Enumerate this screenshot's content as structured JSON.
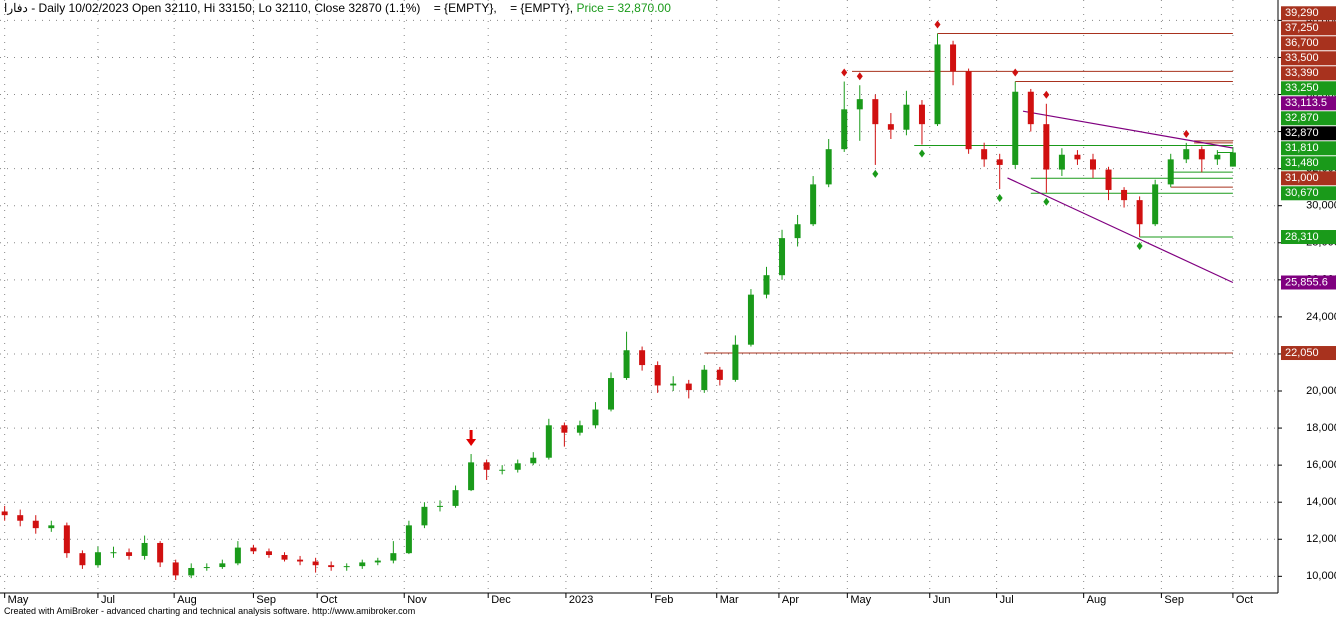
{
  "header": {
    "symbol": "دفارا",
    "title": "- Daily 10/02/2023 Open 32110, Hi 33150, Lo 32110, Close 32870 (1.1%)",
    "empty1": "= {EMPTY},",
    "empty2": "= {EMPTY},",
    "price": "Price = 32,870.00"
  },
  "footer": "Created with AmiBroker - advanced charting and technical analysis software. http://www.amibroker.com",
  "chart_data": {
    "type": "candlestick",
    "up_color": "#1a9a1a",
    "down_color": "#d01010",
    "open": [
      13500,
      13300,
      13000,
      12600,
      12750,
      11250,
      10600,
      11300,
      11300,
      11100,
      11800,
      10750,
      10050,
      10450,
      10500,
      10700,
      11550,
      11350,
      11150,
      10900,
      10800,
      10600,
      10500,
      10550,
      10750,
      10850,
      11250,
      12750,
      13750,
      13800,
      14650,
      16150,
      15750,
      15750,
      16100,
      16400,
      18150,
      17750,
      18150,
      19000,
      20700,
      22200,
      21400,
      20300,
      20400,
      20050,
      21150,
      20600,
      22500,
      25200,
      26250,
      28250,
      29000,
      31150,
      33050,
      35200,
      35750,
      34400,
      34100,
      35450,
      34400,
      38700,
      37250,
      33050,
      32500,
      32200,
      36150,
      34400,
      31950,
      32750,
      32500,
      31950,
      30850,
      30300,
      29000,
      31150,
      32500,
      33050,
      32500,
      32110
    ],
    "high": [
      13800,
      13600,
      13300,
      13000,
      12900,
      11400,
      11600,
      11600,
      11500,
      12200,
      11900,
      10900,
      10700,
      10700,
      10900,
      11900,
      11700,
      11500,
      11300,
      11100,
      11000,
      10800,
      10700,
      10900,
      11000,
      11900,
      13000,
      14000,
      14100,
      14900,
      16600,
      16300,
      16000,
      16300,
      16700,
      18500,
      18300,
      18400,
      19400,
      21000,
      23200,
      22400,
      21600,
      20800,
      20600,
      21400,
      21300,
      23000,
      25500,
      26700,
      28700,
      29500,
      31600,
      33600,
      36700,
      36500,
      36000,
      35000,
      36200,
      35700,
      39290,
      38900,
      37400,
      33400,
      32800,
      36700,
      36300,
      35500,
      33100,
      33000,
      32800,
      32100,
      31000,
      30500,
      31400,
      32800,
      33390,
      33200,
      33000,
      33150
    ],
    "low": [
      13000,
      12700,
      12300,
      12400,
      11000,
      10400,
      10500,
      11000,
      10900,
      10900,
      10500,
      9800,
      9900,
      10300,
      10400,
      10600,
      11200,
      11000,
      10800,
      10600,
      10200,
      10300,
      10300,
      10400,
      10600,
      10700,
      11200,
      12600,
      13500,
      13700,
      14600,
      15200,
      15500,
      15600,
      16000,
      16300,
      17000,
      17600,
      18000,
      18900,
      20600,
      21100,
      19900,
      20000,
      19600,
      19900,
      20300,
      20500,
      22400,
      25000,
      26000,
      27800,
      28900,
      31000,
      32900,
      33500,
      32200,
      33600,
      33800,
      33300,
      34300,
      36500,
      32800,
      32100,
      30900,
      32000,
      34000,
      30700,
      31600,
      32200,
      31500,
      30300,
      29900,
      28310,
      28900,
      31000,
      32300,
      31800,
      32200,
      32110
    ],
    "close": [
      13300,
      13000,
      12600,
      12750,
      11250,
      10600,
      11300,
      11300,
      11100,
      11800,
      10750,
      10050,
      10450,
      10500,
      10700,
      11550,
      11350,
      11150,
      10900,
      10800,
      10600,
      10500,
      10550,
      10750,
      10850,
      11250,
      12750,
      13750,
      13800,
      14650,
      16150,
      15750,
      15750,
      16100,
      16400,
      18150,
      17750,
      18150,
      19000,
      20700,
      22200,
      21400,
      20300,
      20400,
      20050,
      21150,
      20600,
      22500,
      25200,
      26250,
      28250,
      29000,
      31150,
      33050,
      35200,
      35750,
      34400,
      34100,
      35450,
      34400,
      38700,
      37250,
      33050,
      32500,
      32200,
      36150,
      34400,
      31950,
      32750,
      32500,
      31950,
      30850,
      30300,
      29000,
      31150,
      32500,
      33050,
      32500,
      32750,
      32870
    ],
    "xlim": [
      -0.3,
      81.9
    ],
    "xticks": [
      {
        "value": 0,
        "label": "May"
      },
      {
        "value": 6,
        "label": "Jul"
      },
      {
        "value": 10.9,
        "label": "Aug"
      },
      {
        "value": 16,
        "label": "Sep"
      },
      {
        "value": 20.1,
        "label": "Oct"
      },
      {
        "value": 25.7,
        "label": "Nov"
      },
      {
        "value": 31.1,
        "label": "Dec"
      },
      {
        "value": 36.1,
        "label": "2023"
      },
      {
        "value": 41.6,
        "label": "Feb"
      },
      {
        "value": 45.8,
        "label": "Mar"
      },
      {
        "value": 49.8,
        "label": "Apr"
      },
      {
        "value": 54.2,
        "label": "May"
      },
      {
        "value": 59.5,
        "label": "Jun"
      },
      {
        "value": 63.8,
        "label": "Jul"
      },
      {
        "value": 69.4,
        "label": "Aug"
      },
      {
        "value": 74.4,
        "label": "Sep"
      },
      {
        "value": 79,
        "label": "Oct"
      }
    ],
    "ylim": [
      9100,
      41100
    ],
    "yticks": [
      {
        "value": 10000,
        "label": "10,000"
      },
      {
        "value": 12000,
        "label": "12,000"
      },
      {
        "value": 14000,
        "label": "14,000"
      },
      {
        "value": 16000,
        "label": "16,000"
      },
      {
        "value": 18000,
        "label": "18,000"
      },
      {
        "value": 20000,
        "label": "20,000"
      },
      {
        "value": 22000,
        "label": "22,000"
      },
      {
        "value": 24000,
        "label": "24,000"
      },
      {
        "value": 26000,
        "label": "26,000"
      },
      {
        "value": 28000,
        "label": "28,000"
      },
      {
        "value": 30000,
        "label": "30,000"
      },
      {
        "value": 32000,
        "label": "32,000"
      },
      {
        "value": 34000,
        "label": "34,000"
      },
      {
        "value": 36000,
        "label": "36,000"
      },
      {
        "value": 38000,
        "label": "38,000"
      },
      {
        "value": 40000,
        "label": "40,000"
      }
    ],
    "grid": true,
    "levels": [
      {
        "value": 39290,
        "label": "39,290",
        "color": "#a8321e",
        "start": 60
      },
      {
        "value": 37250,
        "label": "37,250",
        "color": "#a8321e",
        "start": 54.5
      },
      {
        "value": 36700,
        "label": "36,700",
        "color": "#a8321e",
        "start": 65
      },
      {
        "value": 33500,
        "label": "33,500",
        "color": "#a8321e",
        "start": 76.5
      },
      {
        "value": 33390,
        "label": "33,390",
        "color": "#a8321e",
        "start": 76.5
      },
      {
        "value": 33250,
        "label": "33,250",
        "color": "#1a9a1a",
        "start": 58.5
      },
      {
        "value": 32870,
        "label": "32,870",
        "color": "#1a9a1a",
        "start": 78
      },
      {
        "value": 32870,
        "label": "32,870",
        "color": "#000000",
        "start": 79
      },
      {
        "value": 31810,
        "label": "31,810",
        "color": "#1a9a1a",
        "start": 75
      },
      {
        "value": 31480,
        "label": "31,480",
        "color": "#1a9a1a",
        "start": 66
      },
      {
        "value": 31000,
        "label": "31,000",
        "color": "#a8321e",
        "start": 75
      },
      {
        "value": 30670,
        "label": "30,670",
        "color": "#1a9a1a",
        "start": 66
      },
      {
        "value": 28310,
        "label": "28,310",
        "color": "#1a9a1a",
        "start": 73
      },
      {
        "value": 22050,
        "label": "22,050",
        "color": "#a8321e",
        "start": 45
      }
    ],
    "trendlines": [
      {
        "color": "#800080",
        "x": [
          65.5,
          79
        ],
        "y": [
          35100,
          33113.5
        ],
        "label": "33,113.5"
      },
      {
        "color": "#800080",
        "x": [
          64.5,
          79
        ],
        "y": [
          31500,
          25855.6
        ],
        "label": "25,855.6"
      }
    ],
    "peak_markers": [
      54,
      55,
      60,
      65,
      67,
      76
    ],
    "trough_markers": [
      56,
      59,
      64,
      67,
      73
    ],
    "arrow_markers": [
      30
    ]
  }
}
